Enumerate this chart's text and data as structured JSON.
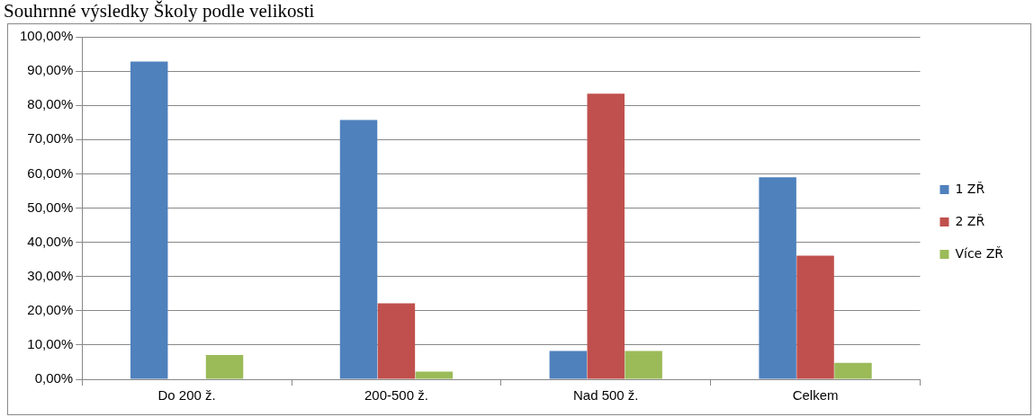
{
  "chart_data": {
    "type": "bar",
    "title": "Souhrnné výsledky Školy podle velikosti",
    "categories": [
      "Do 200 ž.",
      "200-500 ž.",
      "Nad 500 ž.",
      "Celkem"
    ],
    "series": [
      {
        "name": "1 ZŘ",
        "color": "#4f81bd",
        "values": [
          92.8,
          75.7,
          8.3,
          59.0
        ]
      },
      {
        "name": "2 ZŘ",
        "color": "#c0504d",
        "values": [
          0,
          22.2,
          83.4,
          36.1
        ]
      },
      {
        "name": "Více ZŘ",
        "color": "#9bbb59",
        "values": [
          7.1,
          2.2,
          8.3,
          4.8
        ]
      }
    ],
    "ylim": [
      0,
      100
    ],
    "yticks": [
      {
        "value": 0,
        "label": "0,00%"
      },
      {
        "value": 10,
        "label": "10,00%"
      },
      {
        "value": 20,
        "label": "20,00%"
      },
      {
        "value": 30,
        "label": "30,00%"
      },
      {
        "value": 40,
        "label": "40,00%"
      },
      {
        "value": 50,
        "label": "50,00%"
      },
      {
        "value": 60,
        "label": "60,00%"
      },
      {
        "value": 70,
        "label": "70,00%"
      },
      {
        "value": 80,
        "label": "80,00%"
      },
      {
        "value": 90,
        "label": "90,00%"
      },
      {
        "value": 100,
        "label": "100,00%"
      }
    ],
    "grid": "y",
    "legend": "right"
  }
}
